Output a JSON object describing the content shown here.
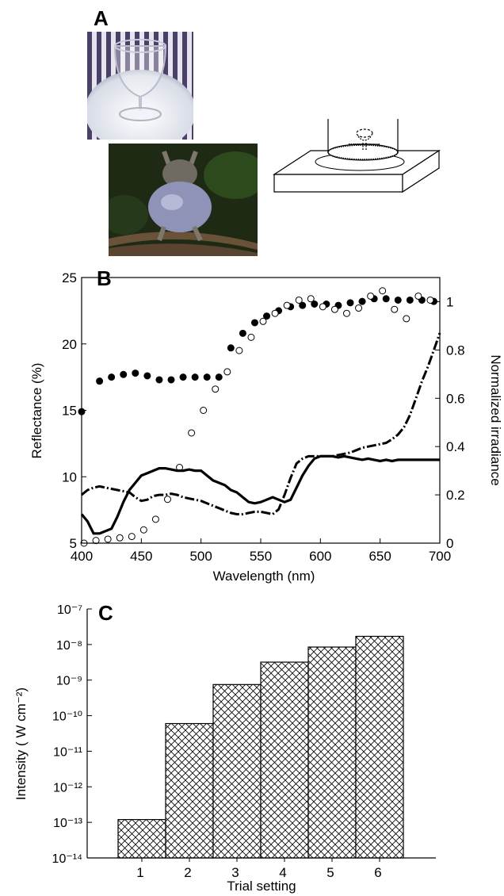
{
  "panels": {
    "a": "A",
    "b": "B",
    "c": "C"
  },
  "colors": {
    "ink": "#000000",
    "stripe_dark": "#4a4266",
    "stripe_light": "#e7e3f0",
    "frog_bg": "#1f2a14",
    "frog_body": "#8f93b7"
  },
  "chart_data": [
    {
      "type": "scatter",
      "title": "",
      "xlabel": "Wavelength (nm)",
      "ylabel": "Reflectance (%)",
      "y2label": "Normalized irradiance",
      "xlim": [
        400,
        700
      ],
      "ylim": [
        5,
        25
      ],
      "y2lim": [
        0,
        1.1
      ],
      "x_ticks": [
        400,
        450,
        500,
        550,
        600,
        650,
        700
      ],
      "y_ticks": [
        5,
        10,
        15,
        20,
        25
      ],
      "y2_ticks": [
        0,
        0.2,
        0.4,
        0.6,
        0.8,
        1
      ],
      "y2_tick_labels": [
        "0",
        "0.2",
        "0.4",
        "0.6",
        "0.8",
        "1"
      ],
      "grid": false,
      "series": [
        {
          "style": "filled-circles",
          "axis": "left",
          "x": [
            400,
            415,
            425,
            435,
            445,
            455,
            465,
            475,
            485,
            495,
            505,
            515,
            525,
            535,
            545,
            555,
            565,
            575,
            585,
            595,
            605,
            615,
            625,
            635,
            645,
            655,
            665,
            675,
            685,
            695
          ],
          "y": [
            14.9,
            17.2,
            17.5,
            17.7,
            17.8,
            17.6,
            17.3,
            17.3,
            17.5,
            17.5,
            17.5,
            17.5,
            19.7,
            20.8,
            21.6,
            22.1,
            22.5,
            22.8,
            22.9,
            23.0,
            23.0,
            22.9,
            23.1,
            23.2,
            23.4,
            23.4,
            23.3,
            23.3,
            23.3,
            23.2
          ]
        },
        {
          "style": "open-circles",
          "axis": "left",
          "x": [
            402,
            412,
            422,
            432,
            442,
            452,
            462,
            472,
            482,
            492,
            502,
            512,
            522,
            532,
            542,
            552,
            562,
            572,
            582,
            592,
            602,
            612,
            622,
            632,
            642,
            652,
            662,
            672,
            682,
            692
          ],
          "y": [
            5.0,
            5.2,
            5.3,
            5.4,
            5.5,
            6.0,
            6.8,
            8.3,
            10.7,
            13.3,
            15.0,
            16.6,
            17.9,
            19.5,
            20.5,
            21.7,
            22.3,
            22.9,
            23.3,
            23.4,
            22.8,
            22.6,
            22.3,
            22.7,
            23.6,
            24.0,
            22.6,
            21.9,
            23.6,
            23.3
          ]
        },
        {
          "style": "solid",
          "axis": "right",
          "x": [
            400,
            405,
            410,
            415,
            420,
            425,
            430,
            435,
            440,
            445,
            450,
            455,
            460,
            465,
            470,
            475,
            480,
            485,
            490,
            495,
            500,
            505,
            510,
            515,
            520,
            525,
            530,
            535,
            540,
            545,
            550,
            555,
            560,
            565,
            570,
            575,
            580,
            585,
            590,
            595,
            600,
            605,
            610,
            615,
            620,
            625,
            630,
            635,
            640,
            645,
            650,
            655,
            660,
            665,
            670,
            675,
            680,
            685,
            690,
            695,
            700
          ],
          "y": [
            0.12,
            0.09,
            0.04,
            0.04,
            0.05,
            0.06,
            0.11,
            0.17,
            0.22,
            0.25,
            0.28,
            0.29,
            0.3,
            0.31,
            0.31,
            0.305,
            0.3,
            0.3,
            0.305,
            0.3,
            0.3,
            0.28,
            0.26,
            0.25,
            0.24,
            0.22,
            0.21,
            0.19,
            0.17,
            0.165,
            0.17,
            0.18,
            0.19,
            0.18,
            0.17,
            0.18,
            0.23,
            0.28,
            0.32,
            0.35,
            0.36,
            0.36,
            0.36,
            0.355,
            0.36,
            0.355,
            0.35,
            0.345,
            0.35,
            0.345,
            0.34,
            0.345,
            0.34,
            0.345,
            0.345,
            0.345,
            0.345,
            0.345,
            0.345,
            0.345,
            0.345
          ]
        },
        {
          "style": "dashed",
          "axis": "right",
          "x": [
            400,
            405,
            410,
            415,
            420,
            425,
            430,
            435,
            440,
            445,
            450,
            455,
            460,
            465,
            470,
            475,
            480,
            485,
            490,
            495,
            500,
            505,
            510,
            515,
            520,
            525,
            530,
            535,
            540,
            545,
            550,
            555,
            560,
            565,
            570,
            575,
            580,
            585,
            590,
            595,
            600,
            605,
            610,
            615,
            620,
            625,
            630,
            635,
            640,
            645,
            650,
            655,
            660,
            665,
            670,
            675,
            680,
            685,
            690,
            695,
            700
          ],
          "y": [
            0.2,
            0.22,
            0.23,
            0.235,
            0.23,
            0.225,
            0.22,
            0.215,
            0.21,
            0.19,
            0.175,
            0.18,
            0.195,
            0.2,
            0.2,
            0.205,
            0.2,
            0.19,
            0.185,
            0.18,
            0.175,
            0.165,
            0.155,
            0.145,
            0.135,
            0.125,
            0.12,
            0.12,
            0.125,
            0.13,
            0.13,
            0.125,
            0.12,
            0.14,
            0.2,
            0.27,
            0.33,
            0.35,
            0.36,
            0.36,
            0.36,
            0.36,
            0.36,
            0.365,
            0.37,
            0.375,
            0.385,
            0.395,
            0.4,
            0.405,
            0.41,
            0.415,
            0.43,
            0.45,
            0.48,
            0.53,
            0.6,
            0.67,
            0.73,
            0.8,
            0.87
          ]
        }
      ]
    },
    {
      "type": "bar",
      "title": "",
      "xlabel": "Trial setting",
      "ylabel": "Intensity ( W cm⁻²)",
      "yscale": "log",
      "ylim": [
        1e-14,
        1e-07
      ],
      "y_tick_labels": [
        "10⁻¹⁴",
        "10⁻¹³",
        "10⁻¹²",
        "10⁻¹¹",
        "10⁻¹⁰",
        "10⁻⁹",
        "10⁻⁸",
        "10⁻⁷"
      ],
      "categories": [
        "1",
        "2",
        "3",
        "4",
        "5",
        "6"
      ],
      "values": [
        1.2e-13,
        6e-11,
        7.5e-10,
        3.2e-09,
        8.5e-09,
        1.7e-08
      ],
      "fill": "crosshatch"
    }
  ]
}
